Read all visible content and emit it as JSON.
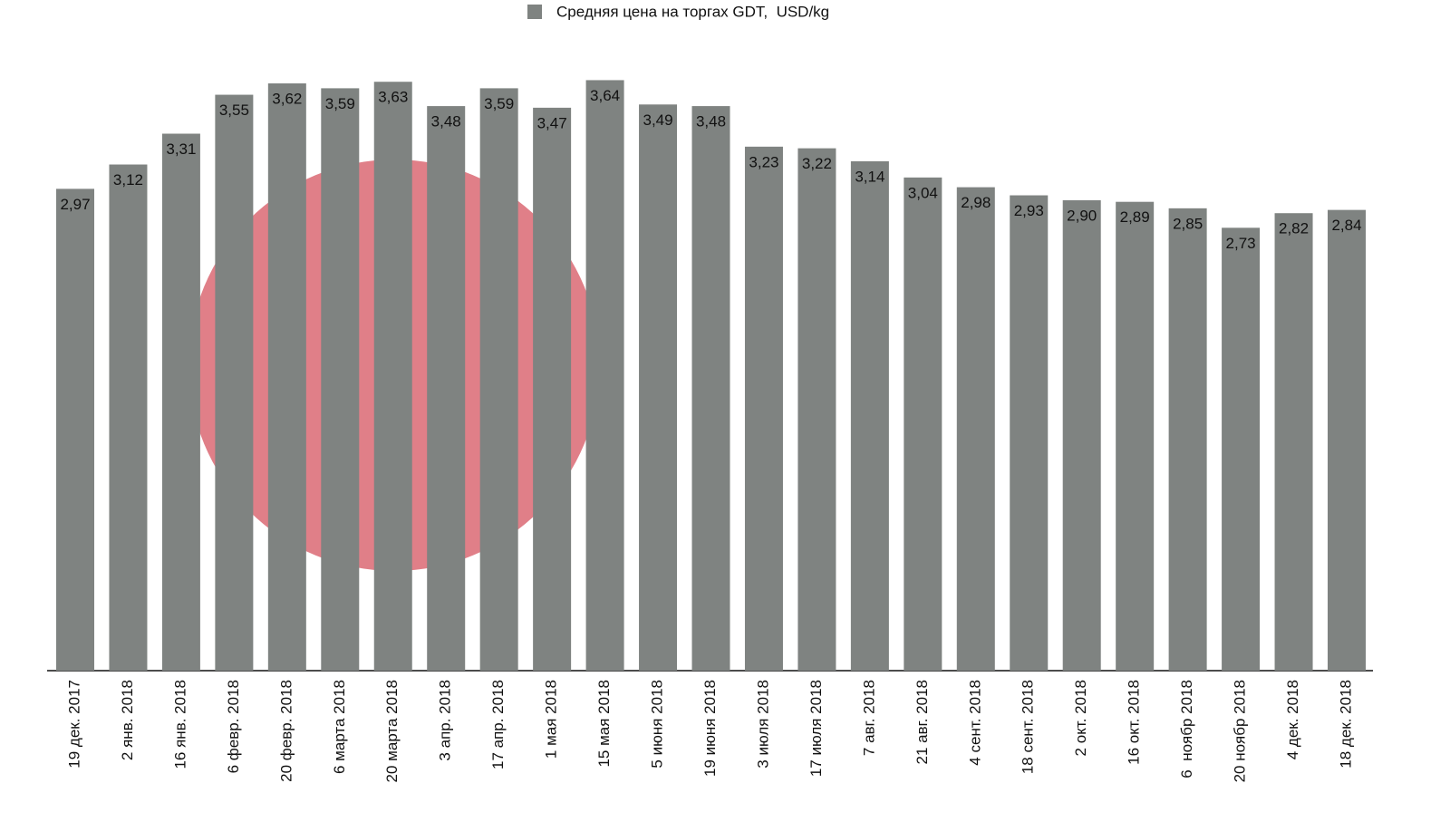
{
  "chart_data": {
    "type": "bar",
    "legend": "Средняя цена на торгах GDT,  USD/kg",
    "color": "#7f8381",
    "categories": [
      "19 дек. 2017",
      "2 янв. 2018",
      "16 янв. 2018",
      "6 февр. 2018",
      "20 февр. 2018",
      "6 марта 2018",
      "20 марта 2018",
      "3 апр. 2018",
      "17 апр. 2018",
      "1 мая 2018",
      "15 мая 2018",
      "5 июня 2018",
      "19 июня 2018",
      "3 июля 2018",
      "17 июля 2018",
      "7 авг. 2018",
      "21 авг. 2018",
      "4 сент. 2018",
      "18 сент. 2018",
      "2 окт. 2018",
      "16 окт. 2018",
      "6  ноябр 2018",
      "20 ноябр 2018",
      "4 дек. 2018",
      "18 дек. 2018"
    ],
    "values": [
      2.97,
      3.12,
      3.31,
      3.55,
      3.62,
      3.59,
      3.63,
      3.48,
      3.59,
      3.47,
      3.64,
      3.49,
      3.48,
      3.23,
      3.22,
      3.14,
      3.04,
      2.98,
      2.93,
      2.9,
      2.89,
      2.85,
      2.73,
      2.82,
      2.84
    ],
    "value_labels": [
      "2,97",
      "3,12",
      "3,31",
      "3,55",
      "3,62",
      "3,59",
      "3,63",
      "3,48",
      "3,59",
      "3,47",
      "3,64",
      "3,49",
      "3,48",
      "3,23",
      "3,22",
      "3,14",
      "3,04",
      "2,98",
      "2,93",
      "2,90",
      "2,89",
      "2,85",
      "2,73",
      "2,82",
      "2,84"
    ]
  }
}
